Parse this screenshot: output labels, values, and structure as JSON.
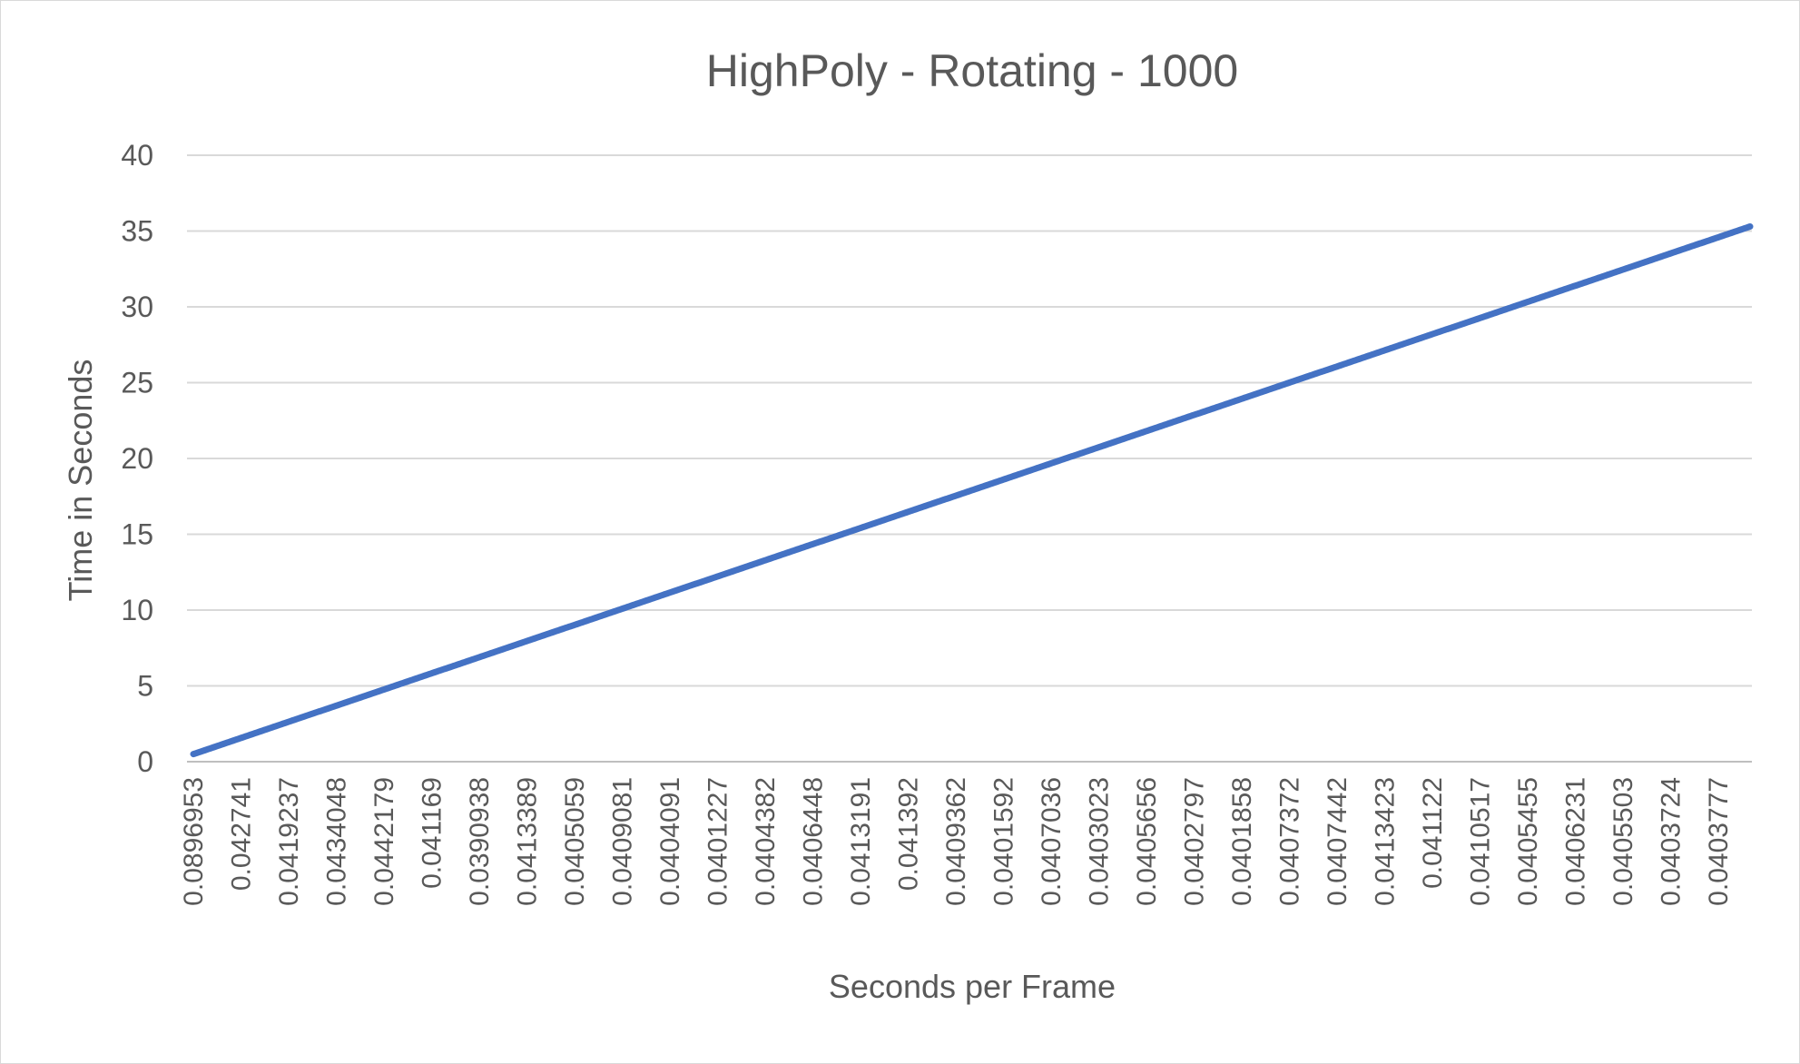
{
  "chart_data": {
    "type": "line",
    "title": "HighPoly - Rotating - 1000",
    "xlabel": "Seconds per Frame",
    "ylabel": "Time in Seconds",
    "ylim": [
      0,
      40
    ],
    "yticks": [
      0,
      5,
      10,
      15,
      20,
      25,
      30,
      35,
      40
    ],
    "grid": true,
    "legend": "none",
    "x_tick_labels": [
      "0.0896953",
      "0.042741",
      "0.0419237",
      "0.0434048",
      "0.0442179",
      "0.041169",
      "0.0390938",
      "0.0413389",
      "0.0405059",
      "0.0409081",
      "0.0404091",
      "0.0401227",
      "0.0404382",
      "0.0406448",
      "0.0413191",
      "0.041392",
      "0.0409362",
      "0.0401592",
      "0.0407036",
      "0.0403023",
      "0.0405656",
      "0.0402797",
      "0.0401858",
      "0.0407372",
      "0.0407442",
      "0.0413423",
      "0.041122",
      "0.0410517",
      "0.0405455",
      "0.0406231",
      "0.0405503",
      "0.0403724",
      "0.0403777"
    ],
    "series": [
      {
        "color": "#4472c4",
        "points_per_tick_interval": 26,
        "start_value": 0.5,
        "end_value": 35.3
      }
    ]
  }
}
